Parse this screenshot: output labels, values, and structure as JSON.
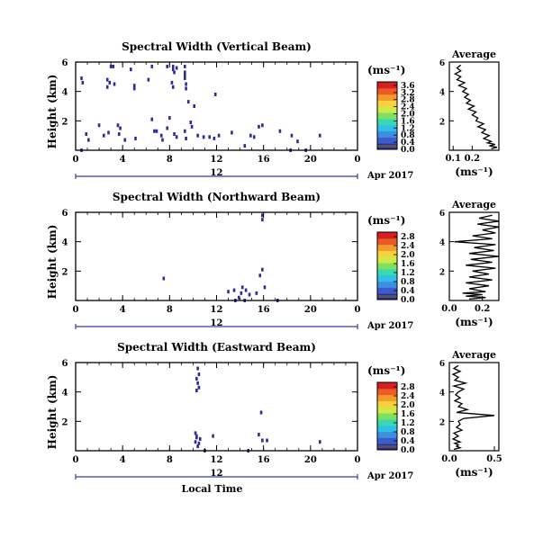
{
  "common": {
    "ylabel": "Height (km)",
    "xlabel": "Local Time",
    "date_label": "Apr 2017",
    "day_marker": "12",
    "unit_label": "(ms⁻¹)",
    "avg_title": "Average",
    "avg_xlabel": "(ms⁻¹)",
    "colormap": [
      "#2b2b9a",
      "#3a5ccc",
      "#3f8fe0",
      "#2fc0e8",
      "#39d8b0",
      "#7fe060",
      "#cfe84a",
      "#f7d23c",
      "#f59a2d",
      "#ec5a25",
      "#d62020"
    ]
  },
  "chart_data": [
    {
      "type": "heatmap",
      "title": "Spectral Width (Vertical Beam)",
      "ylabel": "Height (km)",
      "x_ticks": [
        "0",
        "4",
        "8",
        "12",
        "16",
        "20",
        "0"
      ],
      "xlim": [
        0,
        24
      ],
      "y_ticks": [
        "6",
        "4",
        "2"
      ],
      "ylim": [
        0,
        6
      ],
      "colorbar": {
        "unit": "(ms⁻¹)",
        "ticks": [
          "3.6",
          "3.2",
          "2.8",
          "2.4",
          "2.0",
          "1.6",
          "1.2",
          "0.8",
          "0.4",
          "0.0"
        ],
        "range": [
          0,
          3.8
        ]
      },
      "pixels": [
        [
          3.0,
          5.7
        ],
        [
          3.2,
          5.7
        ],
        [
          6.5,
          5.7
        ],
        [
          7.8,
          5.7
        ],
        [
          8.3,
          5.7
        ],
        [
          8.3,
          5.5
        ],
        [
          8.6,
          5.6
        ],
        [
          9.3,
          5.7
        ],
        [
          9.3,
          5.3
        ],
        [
          9.3,
          5.1
        ],
        [
          9.3,
          4.9
        ],
        [
          8.4,
          5.3
        ],
        [
          0.5,
          4.9
        ],
        [
          0.6,
          4.6
        ],
        [
          2.7,
          4.8
        ],
        [
          2.9,
          4.6
        ],
        [
          2.7,
          4.3
        ],
        [
          3.3,
          4.5
        ],
        [
          5.0,
          4.4
        ],
        [
          5.0,
          4.2
        ],
        [
          8.2,
          4.6
        ],
        [
          8.3,
          4.3
        ],
        [
          9.4,
          4.5
        ],
        [
          9.4,
          4.2
        ],
        [
          4.7,
          5.5
        ],
        [
          6.2,
          4.8
        ],
        [
          11.9,
          3.8
        ],
        [
          2.0,
          1.7
        ],
        [
          2.8,
          1.2
        ],
        [
          3.6,
          1.7
        ],
        [
          3.7,
          1.1
        ],
        [
          3.8,
          1.5
        ],
        [
          4.2,
          0.7
        ],
        [
          5.1,
          0.8
        ],
        [
          6.7,
          1.3
        ],
        [
          6.9,
          1.3
        ],
        [
          7.3,
          1.0
        ],
        [
          7.4,
          0.7
        ],
        [
          7.8,
          1.5
        ],
        [
          8.4,
          1.1
        ],
        [
          8.6,
          0.9
        ],
        [
          9.3,
          1.3
        ],
        [
          9.4,
          0.8
        ],
        [
          9.8,
          1.9
        ],
        [
          9.9,
          1.6
        ],
        [
          10.4,
          1.0
        ],
        [
          10.9,
          0.9
        ],
        [
          11.4,
          0.9
        ],
        [
          11.8,
          0.8
        ],
        [
          12.2,
          1.0
        ],
        [
          13.3,
          1.2
        ],
        [
          14.9,
          1.0
        ],
        [
          15.2,
          0.9
        ],
        [
          15.6,
          1.6
        ],
        [
          15.9,
          1.7
        ],
        [
          17.4,
          1.3
        ],
        [
          18.4,
          1.0
        ],
        [
          18.9,
          0.6
        ],
        [
          20.8,
          1.0
        ],
        [
          1.1,
          0.7
        ],
        [
          0.9,
          1.1
        ],
        [
          2.4,
          1.0
        ],
        [
          9.6,
          3.3
        ],
        [
          10.1,
          3.0
        ],
        [
          6.5,
          2.1
        ],
        [
          8.0,
          2.2
        ],
        [
          18.3,
          0.0
        ],
        [
          19.6,
          0.0
        ],
        [
          0.5,
          0.0
        ],
        [
          14.4,
          0.3
        ]
      ],
      "avg": {
        "x_ticks": [
          "0.1",
          "0.2"
        ],
        "xlim": [
          0.08,
          0.34
        ],
        "profile_x": [
          0.14,
          0.12,
          0.14,
          0.11,
          0.14,
          0.12,
          0.16,
          0.13,
          0.17,
          0.15,
          0.18,
          0.16,
          0.19,
          0.17,
          0.21,
          0.18,
          0.22,
          0.2,
          0.23,
          0.22,
          0.26,
          0.23,
          0.27,
          0.25,
          0.29,
          0.26,
          0.3,
          0.28,
          0.32,
          0.29,
          0.33,
          0.3
        ],
        "profile_y": [
          5.8,
          5.6,
          5.4,
          5.2,
          5.0,
          4.8,
          4.6,
          4.4,
          4.2,
          4.0,
          3.8,
          3.6,
          3.4,
          3.2,
          3.0,
          2.8,
          2.6,
          2.4,
          2.2,
          2.0,
          1.8,
          1.6,
          1.4,
          1.2,
          1.0,
          0.8,
          0.6,
          0.5,
          0.4,
          0.3,
          0.2,
          0.1
        ]
      }
    },
    {
      "type": "heatmap",
      "title": "Spectral Width (Northward Beam)",
      "ylabel": "Height (km)",
      "x_ticks": [
        "0",
        "4",
        "8",
        "12",
        "16",
        "20",
        "0"
      ],
      "xlim": [
        0,
        24
      ],
      "y_ticks": [
        "6",
        "4",
        "2"
      ],
      "ylim": [
        0,
        6
      ],
      "colorbar": {
        "unit": "(ms⁻¹)",
        "ticks": [
          "2.8",
          "2.4",
          "2.0",
          "1.6",
          "1.2",
          "0.8",
          "0.4",
          "0.0"
        ],
        "range": [
          0,
          3.0
        ]
      },
      "pixels": [
        [
          15.9,
          5.8
        ],
        [
          15.9,
          5.5
        ],
        [
          7.5,
          1.5
        ],
        [
          15.9,
          2.1
        ],
        [
          15.7,
          1.7
        ],
        [
          13.0,
          0.6
        ],
        [
          13.5,
          0.7
        ],
        [
          14.1,
          0.5
        ],
        [
          14.5,
          0.7
        ],
        [
          15.4,
          0.5
        ],
        [
          13.9,
          0.2
        ],
        [
          14.8,
          0.4
        ],
        [
          14.2,
          0.9
        ],
        [
          16.1,
          0.9
        ],
        [
          17.2,
          0.0
        ],
        [
          13.6,
          0.0
        ],
        [
          14.4,
          0.0
        ]
      ],
      "avg": {
        "x_ticks": [
          "0.0",
          "0.2"
        ],
        "xlim": [
          0.0,
          0.3
        ],
        "profile_x": [
          0.26,
          0.18,
          0.3,
          0.17,
          0.3,
          0.2,
          0.28,
          0.14,
          0.26,
          0.03,
          0.28,
          0.15,
          0.27,
          0.12,
          0.3,
          0.13,
          0.26,
          0.1,
          0.28,
          0.14,
          0.24,
          0.12,
          0.26,
          0.1,
          0.24,
          0.12,
          0.22,
          0.08,
          0.2,
          0.1,
          0.22,
          0.12
        ],
        "profile_y": [
          5.8,
          5.6,
          5.4,
          5.2,
          5.0,
          4.8,
          4.6,
          4.4,
          4.2,
          4.0,
          3.8,
          3.6,
          3.4,
          3.2,
          3.0,
          2.8,
          2.6,
          2.4,
          2.2,
          2.0,
          1.8,
          1.6,
          1.4,
          1.2,
          1.0,
          0.8,
          0.6,
          0.5,
          0.4,
          0.3,
          0.2,
          0.1
        ]
      }
    },
    {
      "type": "heatmap",
      "title": "Spectral Width (Eastward Beam)",
      "ylabel": "Height (km)",
      "x_ticks": [
        "0",
        "4",
        "8",
        "12",
        "16",
        "20",
        "0"
      ],
      "xlim": [
        0,
        24
      ],
      "y_ticks": [
        "6",
        "4",
        "2"
      ],
      "ylim": [
        0,
        6
      ],
      "colorbar": {
        "unit": "(ms⁻¹)",
        "ticks": [
          "2.8",
          "2.4",
          "2.0",
          "1.6",
          "1.2",
          "0.8",
          "0.4",
          "0.0"
        ],
        "range": [
          0,
          3.0
        ]
      },
      "pixels": [
        [
          10.4,
          5.6
        ],
        [
          10.5,
          5.2
        ],
        [
          10.3,
          4.9
        ],
        [
          10.4,
          4.6
        ],
        [
          10.5,
          4.3
        ],
        [
          10.3,
          4.1
        ],
        [
          10.2,
          1.2
        ],
        [
          10.3,
          0.9
        ],
        [
          10.2,
          0.6
        ],
        [
          10.4,
          0.3
        ],
        [
          10.3,
          1.0
        ],
        [
          10.6,
          0.8
        ],
        [
          10.5,
          0.5
        ],
        [
          11.7,
          1.0
        ],
        [
          15.8,
          2.6
        ],
        [
          15.6,
          1.1
        ],
        [
          15.9,
          0.7
        ],
        [
          16.3,
          0.7
        ],
        [
          20.8,
          0.6
        ],
        [
          14.7,
          0.0
        ],
        [
          11.0,
          0.0
        ]
      ],
      "avg": {
        "x_ticks": [
          "0.0",
          "0.5"
        ],
        "xlim": [
          0.0,
          0.55
        ],
        "profile_x": [
          0.1,
          0.05,
          0.12,
          0.04,
          0.1,
          0.06,
          0.18,
          0.05,
          0.16,
          0.1,
          0.07,
          0.12,
          0.06,
          0.14,
          0.1,
          0.2,
          0.08,
          0.5,
          0.16,
          0.1,
          0.12,
          0.08,
          0.14,
          0.05,
          0.1,
          0.04,
          0.12,
          0.06,
          0.1,
          0.08,
          0.12,
          0.05
        ],
        "profile_y": [
          5.8,
          5.6,
          5.4,
          5.2,
          5.0,
          4.8,
          4.6,
          4.4,
          4.2,
          4.0,
          3.8,
          3.6,
          3.4,
          3.2,
          3.0,
          2.8,
          2.6,
          2.4,
          2.2,
          2.0,
          1.8,
          1.6,
          1.4,
          1.2,
          1.0,
          0.8,
          0.6,
          0.5,
          0.4,
          0.3,
          0.2,
          0.1
        ]
      }
    }
  ]
}
